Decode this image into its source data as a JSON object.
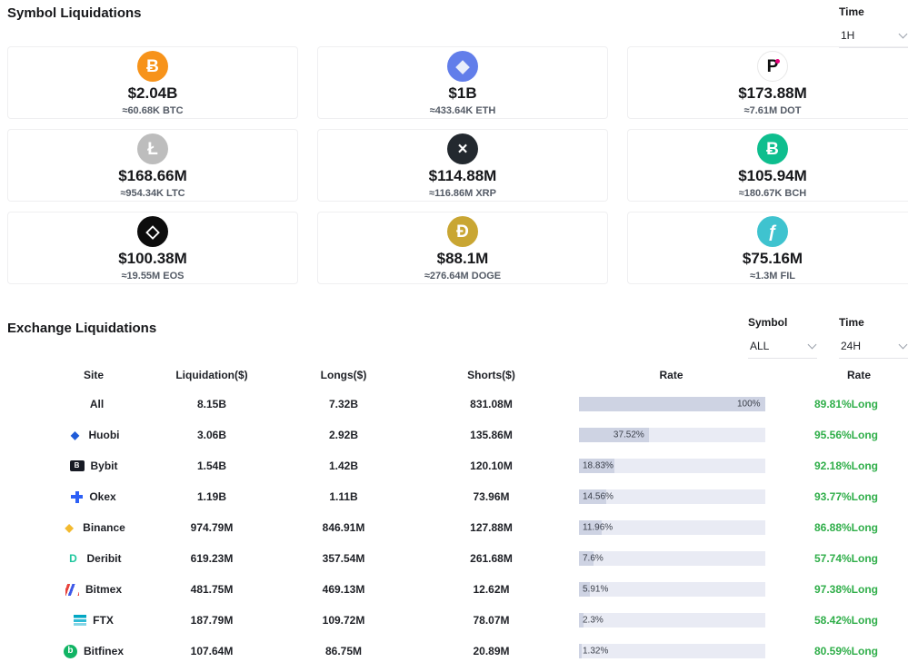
{
  "colors": {
    "long_green": "#2fae49",
    "bar_bg": "#e9ebf4",
    "bar_fill": "#ced3e3"
  },
  "symbol_section": {
    "title": "Symbol Liquidations",
    "time_label": "Time",
    "time_value": "1H",
    "cards": [
      {
        "symbol": "BTC",
        "value": "$2.04B",
        "approx": "≈60.68K BTC",
        "glyph": "Ƀ",
        "bg": "#f7931a",
        "fg": "#ffffff"
      },
      {
        "symbol": "ETH",
        "value": "$1B",
        "approx": "≈433.64K ETH",
        "glyph": "◆",
        "bg": "#627eea",
        "fg": "#e9eefb"
      },
      {
        "symbol": "DOT",
        "value": "$173.88M",
        "approx": "≈7.61M DOT",
        "glyph": "P",
        "bg": "#ffffff",
        "fg": "#101010"
      },
      {
        "symbol": "LTC",
        "value": "$168.66M",
        "approx": "≈954.34K LTC",
        "glyph": "Ł",
        "bg": "#bdbdbd",
        "fg": "#ffffff"
      },
      {
        "symbol": "XRP",
        "value": "$114.88M",
        "approx": "≈116.86M XRP",
        "glyph": "×",
        "bg": "#23292f",
        "fg": "#ffffff"
      },
      {
        "symbol": "BCH",
        "value": "$105.94M",
        "approx": "≈180.67K BCH",
        "glyph": "Ƀ",
        "bg": "#0ebe8e",
        "fg": "#ffffff"
      },
      {
        "symbol": "EOS",
        "value": "$100.38M",
        "approx": "≈19.55M EOS",
        "glyph": "◇",
        "bg": "#0d0d0d",
        "fg": "#ffffff"
      },
      {
        "symbol": "DOGE",
        "value": "$88.1M",
        "approx": "≈276.64M DOGE",
        "glyph": "Ð",
        "bg": "#c9a633",
        "fg": "#ffffff"
      },
      {
        "symbol": "FIL",
        "value": "$75.16M",
        "approx": "≈1.3M FIL",
        "glyph": "ƒ",
        "bg": "#3fc3cf",
        "fg": "#ffffff"
      }
    ]
  },
  "exchange_section": {
    "title": "Exchange Liquidations",
    "symbol_label": "Symbol",
    "symbol_value": "ALL",
    "time_label": "Time",
    "time_value": "24H",
    "table": {
      "headers": [
        "Site",
        "Liquidation($)",
        "Longs($)",
        "Shorts($)",
        "Rate",
        "Rate"
      ],
      "rows": [
        {
          "site": "All",
          "icon": null,
          "liquidation": "8.15B",
          "longs": "7.32B",
          "shorts": "831.08M",
          "rate_pct": 100,
          "rate_label": "100%",
          "long_rate": "89.81%Long"
        },
        {
          "site": "Huobi",
          "icon": {
            "name": "huobi-icon",
            "glyph": "◆",
            "color": "#1f5bd8"
          },
          "liquidation": "3.06B",
          "longs": "2.92B",
          "shorts": "135.86M",
          "rate_pct": 37.52,
          "rate_label": "37.52%",
          "long_rate": "95.56%Long"
        },
        {
          "site": "Bybit",
          "icon": {
            "name": "bybit-icon",
            "glyph": "B",
            "color": "#ffffff",
            "bg": "#171a24",
            "shape": "rect"
          },
          "liquidation": "1.54B",
          "longs": "1.42B",
          "shorts": "120.10M",
          "rate_pct": 18.83,
          "rate_label": "18.83%",
          "long_rate": "92.18%Long"
        },
        {
          "site": "Okex",
          "icon": {
            "name": "okex-icon",
            "glyph": "",
            "color": "#2d60f6",
            "shape": "plus"
          },
          "liquidation": "1.19B",
          "longs": "1.11B",
          "shorts": "73.96M",
          "rate_pct": 14.56,
          "rate_label": "14.56%",
          "long_rate": "93.77%Long"
        },
        {
          "site": "Binance",
          "icon": {
            "name": "binance-icon",
            "glyph": "◆",
            "color": "#f3ba2f"
          },
          "liquidation": "974.79M",
          "longs": "846.91M",
          "shorts": "127.88M",
          "rate_pct": 11.96,
          "rate_label": "11.96%",
          "long_rate": "86.88%Long"
        },
        {
          "site": "Deribit",
          "icon": {
            "name": "deribit-icon",
            "glyph": "D",
            "color": "#1fc79e"
          },
          "liquidation": "619.23M",
          "longs": "357.54M",
          "shorts": "261.68M",
          "rate_pct": 7.6,
          "rate_label": "7.6%",
          "long_rate": "57.74%Long"
        },
        {
          "site": "Bitmex",
          "icon": {
            "name": "bitmex-icon",
            "glyph": "",
            "color": "#e8433c",
            "shape": "stripes-red-blue"
          },
          "liquidation": "481.75M",
          "longs": "469.13M",
          "shorts": "12.62M",
          "rate_pct": 5.91,
          "rate_label": "5.91%",
          "long_rate": "97.38%Long"
        },
        {
          "site": "FTX",
          "icon": {
            "name": "ftx-icon",
            "glyph": "",
            "color": "#02a7c3",
            "shape": "teal-layers"
          },
          "liquidation": "187.79M",
          "longs": "109.72M",
          "shorts": "78.07M",
          "rate_pct": 2.3,
          "rate_label": "2.3%",
          "long_rate": "58.42%Long"
        },
        {
          "site": "Bitfinex",
          "icon": {
            "name": "bitfinex-icon",
            "glyph": "b",
            "color": "#ffffff",
            "bg": "#11b464",
            "shape": "circle"
          },
          "liquidation": "107.64M",
          "longs": "86.75M",
          "shorts": "20.89M",
          "rate_pct": 1.32,
          "rate_label": "1.32%",
          "long_rate": "80.59%Long"
        }
      ]
    }
  }
}
